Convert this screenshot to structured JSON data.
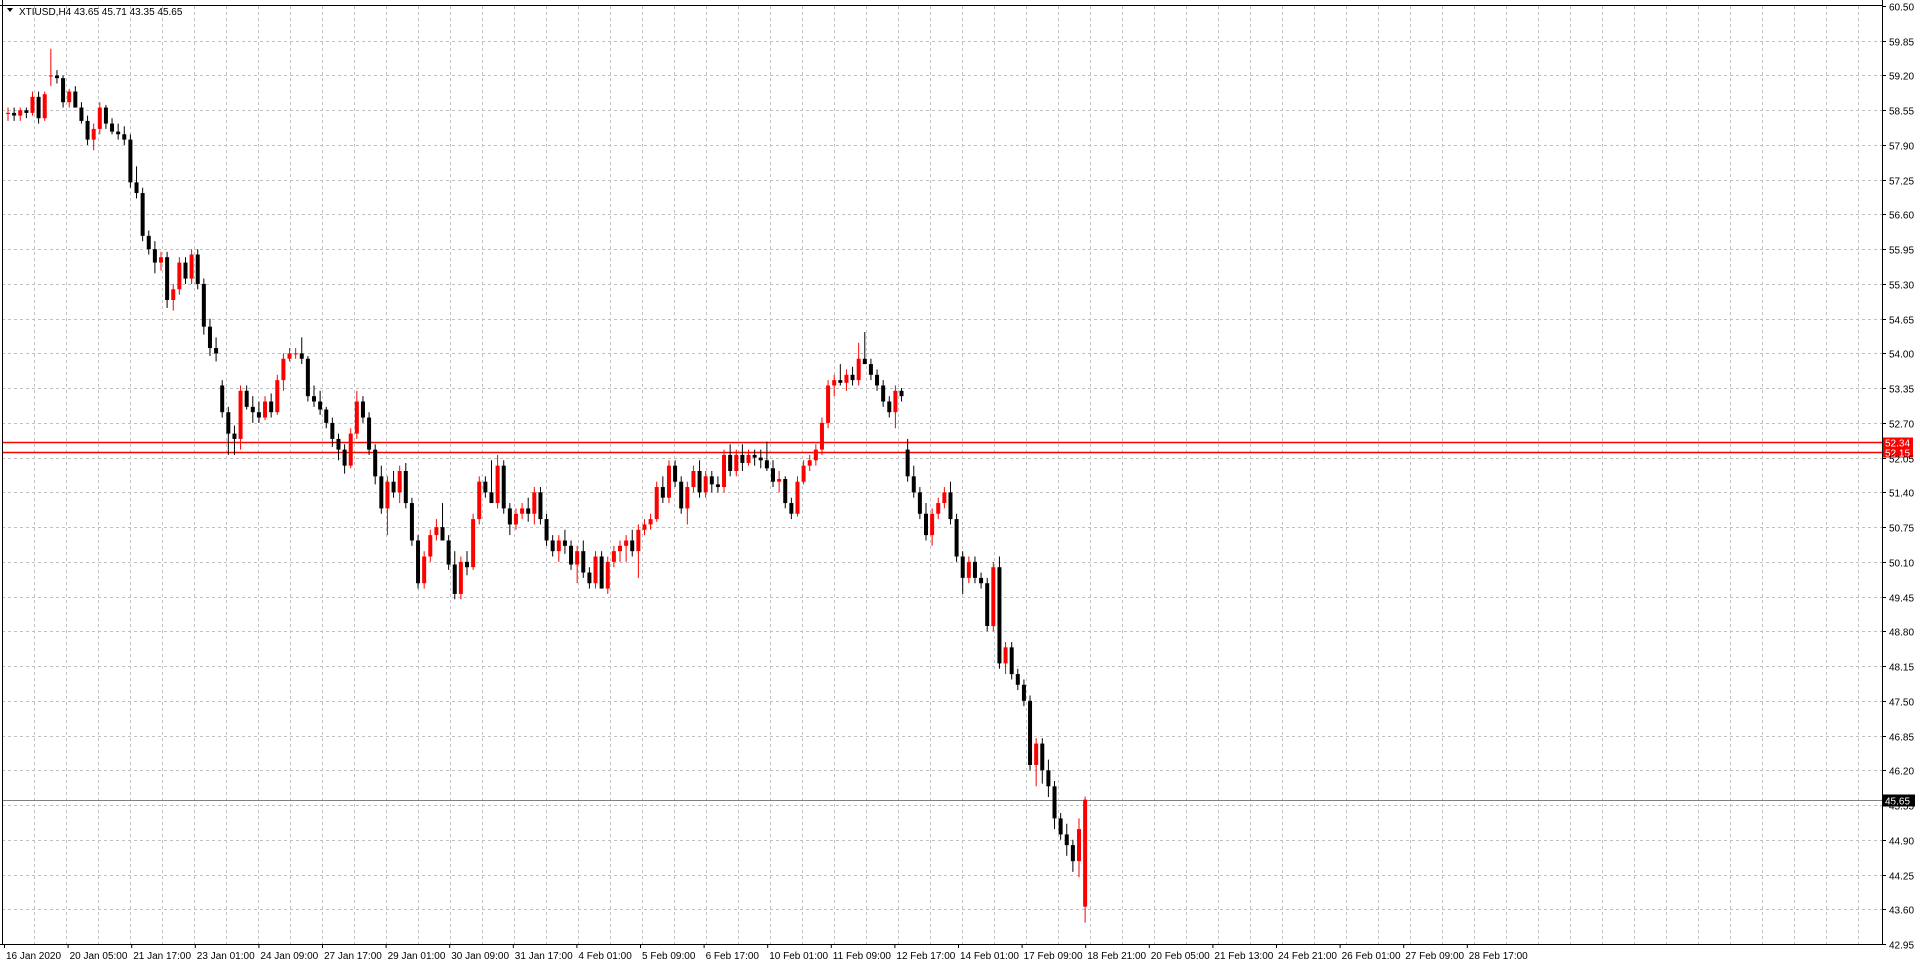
{
  "chart_header": {
    "symbol_label": "XTIUSD,H4",
    "ohlc_label": "43.65 45.71 43.35 45.65",
    "menu_arrow": "triangle-down-icon"
  },
  "chart_data": {
    "type": "candlestick",
    "title": "",
    "xlabel": "",
    "ylabel": "",
    "ylim": [
      42.95,
      60.5
    ],
    "grid": true,
    "price_ticks": [
      "60.50",
      "59.85",
      "59.20",
      "58.55",
      "57.90",
      "57.25",
      "56.60",
      "55.95",
      "55.30",
      "54.65",
      "54.00",
      "53.35",
      "52.70",
      "52.05",
      "51.40",
      "50.75",
      "50.10",
      "49.45",
      "48.80",
      "48.15",
      "47.50",
      "46.85",
      "46.20",
      "45.55",
      "44.90",
      "44.25",
      "43.60",
      "42.95"
    ],
    "time_ticks": [
      "16 Jan 2020",
      "20 Jan 05:00",
      "21 Jan 17:00",
      "23 Jan 01:00",
      "24 Jan 09:00",
      "27 Jan 17:00",
      "29 Jan 01:00",
      "30 Jan 09:00",
      "31 Jan 17:00",
      "4 Feb 01:00",
      "5 Feb 09:00",
      "6 Feb 17:00",
      "10 Feb 01:00",
      "11 Feb 09:00",
      "12 Feb 17:00",
      "14 Feb 01:00",
      "17 Feb 09:00",
      "18 Feb 21:00",
      "20 Feb 05:00",
      "21 Feb 13:00",
      "24 Feb 21:00",
      "26 Feb 01:00",
      "27 Feb 09:00",
      "28 Feb 17:00"
    ],
    "colors": {
      "bull": "#ff0000",
      "bear": "#000000",
      "grid": "#c0c0c0",
      "hline": "#ff0000",
      "bid_line": "#808080"
    },
    "horizontal_lines": [
      {
        "price": 52.34,
        "label": "52.34"
      },
      {
        "price": 52.15,
        "label": "52.15"
      }
    ],
    "bid": {
      "price": 45.65,
      "label": "45.65"
    },
    "candles": [
      [
        58.5,
        58.6,
        58.35,
        58.5
      ],
      [
        58.5,
        58.6,
        58.35,
        58.45
      ],
      [
        58.45,
        58.6,
        58.35,
        58.55
      ],
      [
        58.55,
        58.6,
        58.4,
        58.5
      ],
      [
        58.5,
        58.9,
        58.45,
        58.8
      ],
      [
        58.8,
        58.9,
        58.3,
        58.4
      ],
      [
        58.4,
        58.9,
        58.35,
        58.85
      ],
      [
        59.2,
        59.7,
        59.0,
        59.2
      ],
      [
        59.2,
        59.3,
        59.05,
        59.15
      ],
      [
        59.15,
        59.2,
        58.6,
        58.7
      ],
      [
        58.7,
        58.95,
        58.6,
        58.9
      ],
      [
        58.9,
        59.0,
        58.6,
        58.6
      ],
      [
        58.6,
        58.7,
        58.3,
        58.35
      ],
      [
        58.35,
        58.45,
        57.9,
        58.0
      ],
      [
        58.0,
        58.3,
        57.8,
        58.2
      ],
      [
        58.2,
        58.7,
        58.1,
        58.6
      ],
      [
        58.6,
        58.65,
        58.2,
        58.3
      ],
      [
        58.3,
        58.4,
        58.1,
        58.15
      ],
      [
        58.15,
        58.3,
        58.0,
        58.1
      ],
      [
        58.1,
        58.25,
        57.9,
        58.0
      ],
      [
        58.0,
        58.1,
        57.1,
        57.2
      ],
      [
        57.2,
        57.5,
        56.9,
        57.0
      ],
      [
        57.0,
        57.1,
        56.1,
        56.2
      ],
      [
        56.2,
        56.3,
        55.85,
        55.95
      ],
      [
        55.95,
        56.1,
        55.5,
        55.7
      ],
      [
        55.7,
        55.9,
        55.55,
        55.8
      ],
      [
        55.8,
        55.9,
        54.85,
        55.0
      ],
      [
        55.0,
        55.3,
        54.8,
        55.2
      ],
      [
        55.2,
        55.8,
        55.1,
        55.7
      ],
      [
        55.7,
        55.8,
        55.3,
        55.4
      ],
      [
        55.4,
        55.95,
        55.3,
        55.85
      ],
      [
        55.85,
        55.95,
        55.2,
        55.3
      ],
      [
        55.3,
        55.4,
        54.35,
        54.5
      ],
      [
        54.5,
        54.65,
        53.95,
        54.1
      ],
      [
        54.1,
        54.3,
        53.85,
        54.0
      ],
      [
        53.4,
        53.5,
        52.8,
        52.9
      ],
      [
        52.9,
        53.0,
        52.1,
        52.5
      ],
      [
        52.5,
        52.65,
        52.1,
        52.4
      ],
      [
        52.4,
        53.4,
        52.2,
        53.3
      ],
      [
        53.3,
        53.4,
        52.95,
        53.0
      ],
      [
        53.0,
        53.2,
        52.7,
        52.9
      ],
      [
        52.9,
        53.1,
        52.7,
        52.8
      ],
      [
        52.8,
        53.2,
        52.75,
        53.1
      ],
      [
        53.1,
        53.25,
        52.8,
        52.9
      ],
      [
        52.9,
        53.6,
        52.85,
        53.5
      ],
      [
        53.5,
        54.0,
        53.3,
        53.9
      ],
      [
        53.9,
        54.1,
        53.85,
        54.0
      ],
      [
        54.0,
        54.1,
        53.9,
        54.0
      ],
      [
        54.0,
        54.3,
        53.8,
        53.9
      ],
      [
        53.9,
        53.95,
        53.1,
        53.2
      ],
      [
        53.2,
        53.4,
        53.0,
        53.1
      ],
      [
        53.1,
        53.3,
        52.85,
        52.95
      ],
      [
        52.95,
        53.0,
        52.6,
        52.7
      ],
      [
        52.7,
        52.8,
        52.25,
        52.4
      ],
      [
        52.4,
        52.5,
        52.0,
        52.2
      ],
      [
        52.2,
        52.3,
        51.75,
        51.9
      ],
      [
        51.9,
        52.6,
        51.85,
        52.5
      ],
      [
        52.5,
        53.3,
        52.4,
        53.1
      ],
      [
        53.1,
        53.2,
        52.7,
        52.8
      ],
      [
        52.8,
        52.9,
        52.1,
        52.2
      ],
      [
        52.2,
        52.3,
        51.55,
        51.7
      ],
      [
        51.7,
        51.9,
        51.0,
        51.1
      ],
      [
        51.1,
        51.7,
        50.6,
        51.6
      ],
      [
        51.6,
        51.8,
        51.3,
        51.4
      ],
      [
        51.4,
        51.9,
        51.2,
        51.8
      ],
      [
        51.8,
        51.95,
        51.1,
        51.2
      ],
      [
        51.2,
        51.3,
        50.4,
        50.5
      ],
      [
        50.5,
        50.6,
        49.6,
        49.7
      ],
      [
        49.7,
        50.3,
        49.6,
        50.2
      ],
      [
        50.2,
        50.7,
        50.1,
        50.6
      ],
      [
        50.6,
        50.9,
        50.5,
        50.75
      ],
      [
        50.75,
        51.2,
        50.6,
        50.5
      ],
      [
        50.5,
        50.6,
        49.95,
        50.05
      ],
      [
        50.05,
        50.3,
        49.4,
        49.5
      ],
      [
        49.5,
        50.2,
        49.4,
        50.1
      ],
      [
        50.1,
        50.3,
        49.85,
        50.0
      ],
      [
        50.0,
        51.0,
        49.95,
        50.9
      ],
      [
        50.9,
        51.7,
        50.8,
        51.6
      ],
      [
        51.6,
        51.7,
        51.3,
        51.4
      ],
      [
        51.4,
        52.0,
        51.3,
        51.2
      ],
      [
        51.2,
        52.1,
        51.1,
        51.9
      ],
      [
        51.9,
        52.0,
        51.0,
        51.1
      ],
      [
        51.1,
        51.2,
        50.6,
        50.8
      ],
      [
        50.8,
        51.1,
        50.7,
        51.0
      ],
      [
        51.0,
        51.2,
        50.9,
        51.1
      ],
      [
        51.1,
        51.3,
        50.85,
        51.0
      ],
      [
        51.0,
        51.5,
        50.8,
        51.4
      ],
      [
        51.4,
        51.5,
        50.8,
        50.9
      ],
      [
        50.9,
        51.0,
        50.4,
        50.5
      ],
      [
        50.5,
        50.6,
        50.2,
        50.3
      ],
      [
        50.3,
        50.6,
        50.1,
        50.5
      ],
      [
        50.5,
        50.7,
        50.25,
        50.4
      ],
      [
        50.4,
        50.5,
        49.95,
        50.05
      ],
      [
        50.05,
        50.4,
        49.7,
        50.3
      ],
      [
        50.3,
        50.5,
        49.8,
        49.9
      ],
      [
        49.9,
        50.0,
        49.6,
        49.7
      ],
      [
        49.7,
        50.3,
        49.6,
        50.2
      ],
      [
        50.2,
        50.3,
        49.6,
        49.6
      ],
      [
        49.6,
        50.2,
        49.5,
        50.1
      ],
      [
        50.1,
        50.4,
        50.0,
        50.3
      ],
      [
        50.3,
        50.5,
        50.1,
        50.4
      ],
      [
        50.4,
        50.6,
        50.1,
        50.5
      ],
      [
        50.5,
        50.7,
        50.2,
        50.3
      ],
      [
        50.3,
        50.8,
        49.8,
        50.7
      ],
      [
        50.7,
        50.9,
        50.6,
        50.8
      ],
      [
        50.8,
        51.0,
        50.7,
        50.9
      ],
      [
        50.9,
        51.6,
        50.85,
        51.5
      ],
      [
        51.5,
        51.7,
        51.2,
        51.3
      ],
      [
        51.3,
        52.0,
        51.2,
        51.9
      ],
      [
        51.9,
        52.0,
        51.5,
        51.6
      ],
      [
        51.6,
        51.7,
        51.0,
        51.1
      ],
      [
        51.1,
        51.6,
        50.8,
        51.5
      ],
      [
        51.5,
        51.9,
        51.4,
        51.8
      ],
      [
        51.8,
        52.0,
        51.3,
        51.4
      ],
      [
        51.4,
        51.8,
        51.3,
        51.7
      ],
      [
        51.7,
        51.8,
        51.4,
        51.55
      ],
      [
        51.55,
        51.7,
        51.4,
        51.5
      ],
      [
        51.5,
        52.2,
        51.4,
        52.1
      ],
      [
        52.1,
        52.3,
        51.7,
        51.8
      ],
      [
        51.8,
        52.2,
        51.7,
        52.1
      ],
      [
        52.1,
        52.3,
        51.8,
        51.95
      ],
      [
        51.95,
        52.2,
        51.9,
        52.1
      ],
      [
        52.1,
        52.2,
        51.9,
        52.05
      ],
      [
        52.05,
        52.2,
        51.85,
        52.0
      ],
      [
        52.0,
        52.35,
        51.8,
        51.85
      ],
      [
        51.85,
        52.0,
        51.5,
        51.6
      ],
      [
        51.6,
        51.8,
        51.4,
        51.65
      ],
      [
        51.65,
        51.7,
        51.1,
        51.2
      ],
      [
        51.2,
        51.3,
        50.9,
        51.0
      ],
      [
        51.0,
        51.7,
        50.95,
        51.6
      ],
      [
        51.6,
        52.0,
        51.55,
        51.9
      ],
      [
        51.9,
        52.1,
        51.8,
        52.0
      ],
      [
        52.0,
        52.3,
        51.9,
        52.2
      ],
      [
        52.2,
        52.8,
        52.1,
        52.7
      ],
      [
        52.7,
        53.5,
        52.6,
        53.4
      ],
      [
        53.4,
        53.6,
        53.2,
        53.5
      ],
      [
        53.5,
        53.8,
        53.4,
        53.45
      ],
      [
        53.45,
        53.7,
        53.3,
        53.6
      ],
      [
        53.6,
        53.75,
        53.4,
        53.5
      ],
      [
        53.5,
        54.2,
        53.4,
        53.9
      ],
      [
        53.9,
        54.4,
        53.8,
        53.8
      ],
      [
        53.8,
        53.9,
        53.5,
        53.6
      ],
      [
        53.6,
        53.7,
        53.3,
        53.4
      ],
      [
        53.4,
        53.5,
        53.0,
        53.1
      ],
      [
        53.1,
        53.2,
        52.8,
        52.9
      ],
      [
        52.9,
        53.4,
        52.6,
        53.3
      ],
      [
        53.3,
        53.35,
        53.1,
        53.2
      ],
      [
        52.2,
        52.4,
        51.6,
        51.7
      ],
      [
        51.7,
        51.9,
        51.3,
        51.4
      ],
      [
        51.4,
        51.5,
        50.9,
        51.0
      ],
      [
        51.0,
        51.2,
        50.5,
        50.6
      ],
      [
        50.6,
        51.1,
        50.4,
        51.0
      ],
      [
        51.0,
        51.3,
        50.9,
        51.2
      ],
      [
        51.2,
        51.5,
        51.1,
        51.4
      ],
      [
        51.4,
        51.6,
        50.8,
        50.9
      ],
      [
        50.9,
        51.0,
        50.1,
        50.2
      ],
      [
        50.2,
        50.3,
        49.5,
        49.8
      ],
      [
        49.8,
        50.2,
        49.7,
        50.1
      ],
      [
        50.1,
        50.2,
        49.7,
        49.8
      ],
      [
        49.8,
        49.9,
        49.6,
        49.7
      ],
      [
        49.7,
        49.8,
        48.8,
        48.9
      ],
      [
        48.9,
        50.1,
        48.8,
        50.0
      ],
      [
        50.0,
        50.2,
        48.1,
        48.2
      ],
      [
        48.2,
        48.6,
        48.0,
        48.5
      ],
      [
        48.5,
        48.6,
        47.9,
        48.0
      ],
      [
        48.0,
        48.1,
        47.7,
        47.8
      ],
      [
        47.8,
        47.9,
        47.4,
        47.5
      ],
      [
        47.5,
        47.6,
        46.2,
        46.3
      ],
      [
        46.3,
        46.8,
        45.9,
        46.7
      ],
      [
        46.7,
        46.8,
        45.95,
        46.2
      ],
      [
        46.2,
        46.4,
        45.7,
        45.9
      ],
      [
        45.9,
        46.0,
        45.1,
        45.3
      ],
      [
        45.3,
        45.4,
        44.9,
        45.0
      ],
      [
        45.0,
        45.2,
        44.6,
        44.8
      ],
      [
        44.8,
        44.9,
        44.3,
        44.5
      ],
      [
        44.5,
        45.3,
        44.2,
        45.1
      ],
      [
        43.65,
        45.71,
        43.35,
        45.65
      ]
    ]
  }
}
